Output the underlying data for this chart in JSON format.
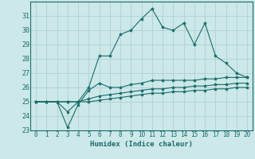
{
  "xlabel": "Humidex (Indice chaleur)",
  "ylabel": "",
  "background_color": "#cce8e8",
  "grid_color": "#aacccc",
  "line_color": "#1a6b6b",
  "xlim": [
    -0.5,
    20.5
  ],
  "ylim": [
    23,
    32
  ],
  "xticks": [
    0,
    1,
    2,
    3,
    4,
    5,
    6,
    7,
    8,
    9,
    10,
    11,
    12,
    13,
    14,
    15,
    16,
    17,
    18,
    19,
    20
  ],
  "yticks": [
    23,
    24,
    25,
    26,
    27,
    28,
    29,
    30,
    31
  ],
  "series1_x": [
    0,
    1,
    2,
    3,
    4,
    5,
    6,
    7,
    8,
    9,
    10,
    11,
    12,
    13,
    14,
    15,
    16,
    17,
    18,
    19,
    20
  ],
  "series1_y": [
    25,
    25,
    25,
    24.3,
    25.0,
    26.0,
    28.2,
    28.2,
    29.7,
    30.0,
    30.8,
    31.5,
    30.2,
    30.0,
    30.5,
    29.0,
    30.5,
    28.2,
    27.7,
    27.0,
    26.7
  ],
  "series2_x": [
    0,
    1,
    2,
    3,
    4,
    5,
    6,
    7,
    8,
    9,
    10,
    11,
    12,
    13,
    14,
    15,
    16,
    17,
    18,
    19,
    20
  ],
  "series2_y": [
    25,
    25,
    25,
    23.2,
    24.8,
    25.8,
    26.3,
    26.0,
    26.0,
    26.2,
    26.3,
    26.5,
    26.5,
    26.5,
    26.5,
    26.5,
    26.6,
    26.6,
    26.7,
    26.7,
    26.7
  ],
  "series3_x": [
    0,
    1,
    2,
    3,
    4,
    5,
    6,
    7,
    8,
    9,
    10,
    11,
    12,
    13,
    14,
    15,
    16,
    17,
    18,
    19,
    20
  ],
  "series3_y": [
    25,
    25,
    25,
    25,
    25,
    25.2,
    25.4,
    25.5,
    25.6,
    25.7,
    25.8,
    25.9,
    25.9,
    26.0,
    26.0,
    26.1,
    26.1,
    26.2,
    26.2,
    26.3,
    26.3
  ],
  "series4_x": [
    0,
    1,
    2,
    3,
    4,
    5,
    6,
    7,
    8,
    9,
    10,
    11,
    12,
    13,
    14,
    15,
    16,
    17,
    18,
    19,
    20
  ],
  "series4_y": [
    25,
    25,
    25,
    25,
    25,
    25,
    25.1,
    25.2,
    25.3,
    25.4,
    25.5,
    25.6,
    25.6,
    25.7,
    25.7,
    25.8,
    25.8,
    25.9,
    25.9,
    26.0,
    26.0
  ]
}
